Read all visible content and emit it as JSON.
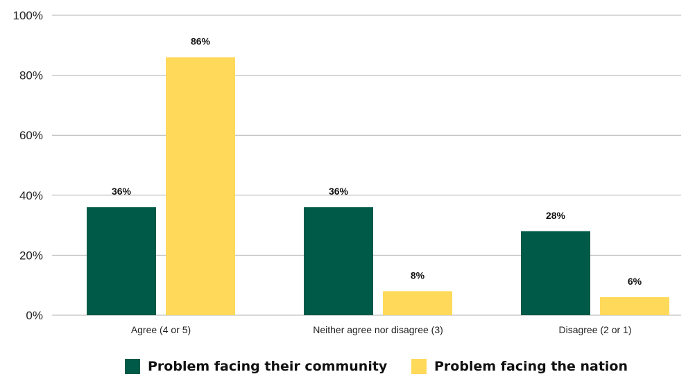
{
  "chart_data": {
    "type": "bar",
    "categories": [
      "Agree (4 or 5)",
      "Neither agree nor disagree (3)",
      "Disagree (2 or 1)"
    ],
    "series": [
      {
        "name": "Problem facing their community",
        "values": [
          36,
          36,
          28
        ],
        "labels": [
          "36%",
          "36%",
          "28%"
        ],
        "color": "#005a48"
      },
      {
        "name": "Problem facing the nation",
        "values": [
          86,
          8,
          6
        ],
        "labels": [
          "86%",
          "8%",
          "6%"
        ],
        "color": "#ffd95a"
      }
    ],
    "y_ticks": [
      0,
      20,
      40,
      60,
      80,
      100
    ],
    "y_tick_labels": [
      "0%",
      "20%",
      "40%",
      "60%",
      "80%",
      "100%"
    ],
    "ylim": [
      0,
      100
    ],
    "grid": true,
    "grid_color": "#b0b0b0",
    "legend_position": "bottom"
  }
}
